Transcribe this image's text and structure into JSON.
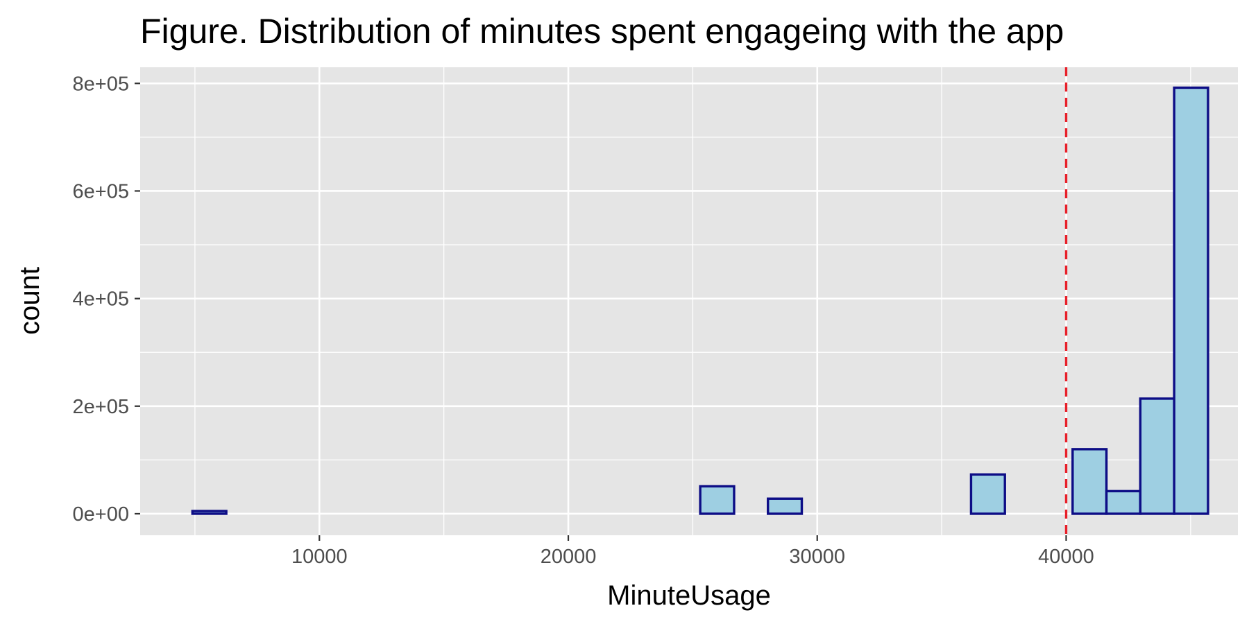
{
  "chart_data": {
    "type": "bar",
    "subtype": "histogram",
    "title": "Figure. Distribution of minutes spent engageing with the app",
    "xlabel": "MinuteUsage",
    "ylabel": "count",
    "xlim": [
      2800,
      46900
    ],
    "ylim": [
      -40000,
      830000
    ],
    "xticks": [
      10000,
      20000,
      30000,
      40000
    ],
    "xtick_labels": [
      "10000",
      "20000",
      "30000",
      "40000"
    ],
    "yticks": [
      0,
      200000,
      400000,
      600000,
      800000
    ],
    "ytick_labels": [
      "0e+00",
      "2e+05",
      "4e+05",
      "6e+05",
      "8e+05"
    ],
    "bin_width": 1360,
    "bins": [
      {
        "x0": 4900,
        "x1": 6260,
        "count": 5000
      },
      {
        "x0": 6260,
        "x1": 7620,
        "count": 0
      },
      {
        "x0": 7620,
        "x1": 8980,
        "count": 0
      },
      {
        "x0": 8980,
        "x1": 10340,
        "count": 0
      },
      {
        "x0": 10340,
        "x1": 11700,
        "count": 0
      },
      {
        "x0": 11700,
        "x1": 13060,
        "count": 0
      },
      {
        "x0": 13060,
        "x1": 14420,
        "count": 0
      },
      {
        "x0": 14420,
        "x1": 15780,
        "count": 0
      },
      {
        "x0": 15780,
        "x1": 17140,
        "count": 0
      },
      {
        "x0": 17140,
        "x1": 18500,
        "count": 0
      },
      {
        "x0": 18500,
        "x1": 19860,
        "count": 0
      },
      {
        "x0": 19860,
        "x1": 21220,
        "count": 0
      },
      {
        "x0": 21220,
        "x1": 22580,
        "count": 0
      },
      {
        "x0": 22580,
        "x1": 23940,
        "count": 0
      },
      {
        "x0": 23940,
        "x1": 25300,
        "count": 0
      },
      {
        "x0": 25300,
        "x1": 26660,
        "count": 51000
      },
      {
        "x0": 26660,
        "x1": 28020,
        "count": 0
      },
      {
        "x0": 28020,
        "x1": 29380,
        "count": 28000
      },
      {
        "x0": 29380,
        "x1": 30740,
        "count": 0
      },
      {
        "x0": 30740,
        "x1": 32100,
        "count": 0
      },
      {
        "x0": 32100,
        "x1": 33460,
        "count": 0
      },
      {
        "x0": 33460,
        "x1": 34820,
        "count": 0
      },
      {
        "x0": 34820,
        "x1": 36180,
        "count": 0
      },
      {
        "x0": 36180,
        "x1": 37540,
        "count": 73000
      },
      {
        "x0": 37540,
        "x1": 38900,
        "count": 0
      },
      {
        "x0": 38900,
        "x1": 40260,
        "count": 0
      },
      {
        "x0": 40260,
        "x1": 41620,
        "count": 120000
      },
      {
        "x0": 41620,
        "x1": 42980,
        "count": 42000
      },
      {
        "x0": 42980,
        "x1": 44340,
        "count": 214000
      },
      {
        "x0": 44340,
        "x1": 45700,
        "count": 792000
      }
    ],
    "reference_line": {
      "x": 40000,
      "style": "dashed",
      "color": "#e8202a"
    },
    "fill_color": "#9ecfe2",
    "outline_color": "#0d0d86",
    "panel_color": "#e5e5e5",
    "grid": true,
    "legend": "none"
  }
}
